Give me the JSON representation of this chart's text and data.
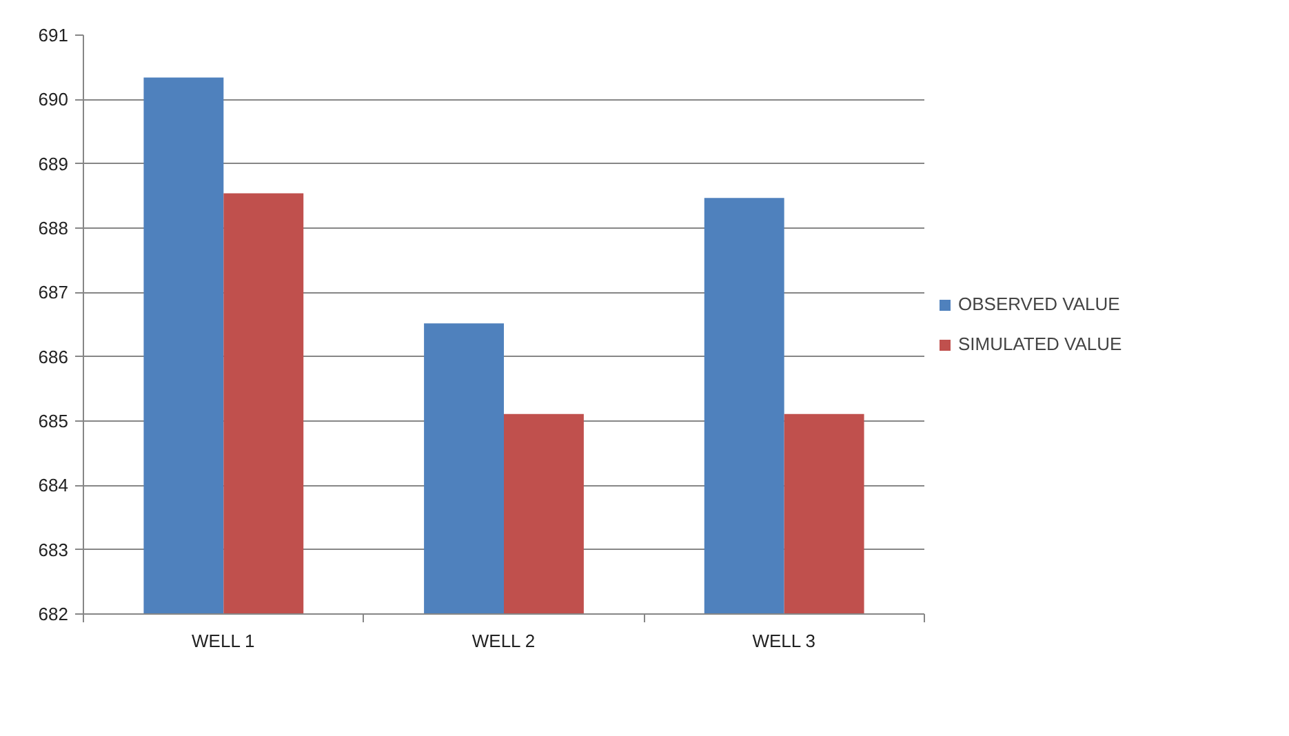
{
  "chart_data": {
    "type": "bar",
    "categories": [
      "WELL 1",
      "WELL 2",
      "WELL 3"
    ],
    "series": [
      {
        "name": "OBSERVED VALUE",
        "color": "#4f81bd",
        "values": [
          690.34,
          686.52,
          688.47
        ]
      },
      {
        "name": "SIMULATED VALUE",
        "color": "#c0504d",
        "values": [
          688.54,
          685.11,
          685.11
        ]
      }
    ],
    "ylim": [
      682,
      691
    ],
    "yticks": [
      682,
      683,
      684,
      685,
      686,
      687,
      688,
      689,
      690,
      691
    ],
    "grid": "y",
    "legend": "right"
  }
}
